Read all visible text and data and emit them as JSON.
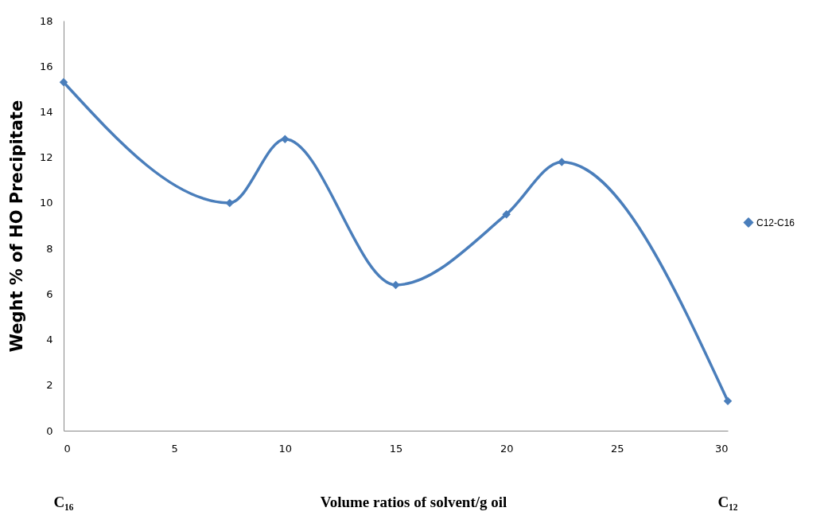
{
  "chart_data": {
    "type": "line",
    "xlabel": "Volume ratios of solvent/g oil",
    "ylabel": "Weght % of HO Precipitate",
    "x": [
      0,
      7.5,
      10,
      15,
      20,
      22.5,
      30
    ],
    "series": [
      {
        "name": "C12-C16",
        "color": "#4a7ebb",
        "values": [
          15.3,
          10,
          12.8,
          6.4,
          9.5,
          11.8,
          1.3
        ]
      }
    ],
    "xlim": [
      0,
      30
    ],
    "xticks": [
      0,
      5,
      10,
      15,
      20,
      25,
      30
    ],
    "ylim": [
      0,
      18
    ],
    "yticks": [
      0,
      2,
      4,
      6,
      8,
      10,
      12,
      14,
      16,
      18
    ],
    "grid": false,
    "legend": "right",
    "marker": "diamond",
    "line_style": "solid",
    "annotations": [
      "C₁₆",
      "C₁₂"
    ]
  }
}
